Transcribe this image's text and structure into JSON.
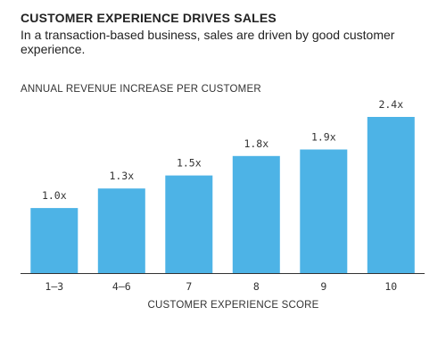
{
  "chart_data": {
    "type": "bar",
    "title": "CUSTOMER EXPERIENCE DRIVES SALES",
    "subtitle": "In a transaction-based business, sales are driven by good customer experience.",
    "ylabel": "ANNUAL REVENUE INCREASE PER CUSTOMER",
    "xlabel": "CUSTOMER EXPERIENCE SCORE",
    "categories": [
      "1–3",
      "4–6",
      "7",
      "8",
      "9",
      "10"
    ],
    "values": [
      1.0,
      1.3,
      1.5,
      1.8,
      1.9,
      2.4
    ],
    "value_labels": [
      "1.0x",
      "1.3x",
      "1.5x",
      "1.8x",
      "1.9x",
      "2.4x"
    ],
    "ylim": [
      0,
      2.4
    ],
    "grid": false,
    "colors": {
      "bar": "#4db3e6",
      "axis": "#333333"
    }
  }
}
